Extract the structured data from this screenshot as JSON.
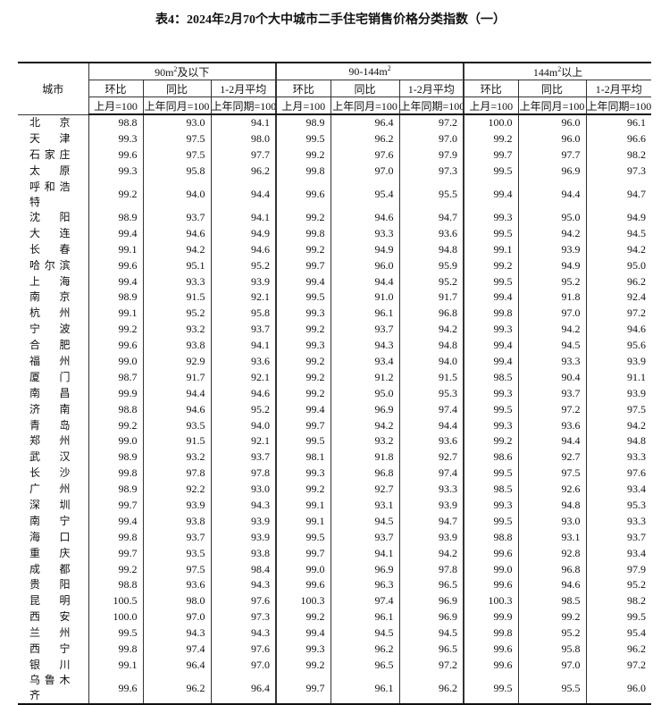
{
  "title": "表4：2024年2月70个大中城市二手住宅销售价格分类指数（一）",
  "header": {
    "city": "城市",
    "groups": [
      {
        "label": "90m",
        "sup": "2",
        "suffix": "及以下"
      },
      {
        "label": "90-144m",
        "sup": "2",
        "suffix": ""
      },
      {
        "label": "144m",
        "sup": "2",
        "suffix": "以上"
      }
    ],
    "sub": [
      "环比",
      "同比",
      "1-2月平均"
    ],
    "base": [
      "上月=100",
      "上年同月=100",
      "上年同期=100"
    ]
  },
  "rows": [
    [
      "北　京",
      "98.8",
      "93.0",
      "94.1",
      "98.9",
      "96.4",
      "97.2",
      "100.0",
      "96.0",
      "96.1"
    ],
    [
      "天　津",
      "99.3",
      "97.5",
      "98.0",
      "99.5",
      "96.2",
      "97.0",
      "99.2",
      "96.0",
      "96.6"
    ],
    [
      "石家庄",
      "99.6",
      "97.5",
      "97.7",
      "99.2",
      "97.6",
      "97.9",
      "99.7",
      "97.7",
      "98.2"
    ],
    [
      "太　原",
      "99.3",
      "95.8",
      "96.2",
      "99.8",
      "97.0",
      "97.3",
      "99.5",
      "96.9",
      "97.3"
    ],
    [
      "呼和浩特",
      "99.2",
      "94.0",
      "94.4",
      "99.6",
      "95.4",
      "95.5",
      "99.4",
      "94.4",
      "94.7"
    ],
    [
      "沈　阳",
      "98.9",
      "93.7",
      "94.1",
      "99.2",
      "94.6",
      "94.7",
      "99.3",
      "95.0",
      "94.9"
    ],
    [
      "大　连",
      "99.4",
      "94.6",
      "94.9",
      "99.8",
      "93.3",
      "93.6",
      "99.5",
      "94.2",
      "94.5"
    ],
    [
      "长　春",
      "99.1",
      "94.2",
      "94.6",
      "99.2",
      "94.9",
      "94.8",
      "99.1",
      "93.9",
      "94.2"
    ],
    [
      "哈尔滨",
      "99.6",
      "95.1",
      "95.2",
      "99.7",
      "96.0",
      "95.9",
      "99.2",
      "94.9",
      "95.0"
    ],
    [
      "上　海",
      "99.4",
      "93.3",
      "93.9",
      "99.4",
      "94.4",
      "95.2",
      "99.5",
      "95.2",
      "96.2"
    ],
    [
      "南　京",
      "98.9",
      "91.5",
      "92.1",
      "99.5",
      "91.0",
      "91.7",
      "99.4",
      "91.8",
      "92.4"
    ],
    [
      "杭　州",
      "99.1",
      "95.2",
      "95.8",
      "99.3",
      "96.1",
      "96.8",
      "99.8",
      "97.0",
      "97.2"
    ],
    [
      "宁　波",
      "99.2",
      "93.2",
      "93.7",
      "99.2",
      "93.7",
      "94.2",
      "99.3",
      "94.2",
      "94.6"
    ],
    [
      "合　肥",
      "99.6",
      "93.8",
      "94.1",
      "99.3",
      "94.3",
      "94.8",
      "99.4",
      "94.5",
      "95.6"
    ],
    [
      "福　州",
      "99.0",
      "92.9",
      "93.6",
      "99.2",
      "93.4",
      "94.0",
      "99.4",
      "93.3",
      "93.9"
    ],
    [
      "厦　门",
      "98.7",
      "91.7",
      "92.1",
      "99.2",
      "91.2",
      "91.5",
      "98.5",
      "90.4",
      "91.1"
    ],
    [
      "南　昌",
      "99.9",
      "94.4",
      "94.6",
      "99.2",
      "95.0",
      "95.3",
      "99.3",
      "93.7",
      "93.9"
    ],
    [
      "济　南",
      "98.8",
      "94.6",
      "95.2",
      "99.4",
      "96.9",
      "97.4",
      "99.5",
      "97.2",
      "97.5"
    ],
    [
      "青　岛",
      "99.2",
      "93.5",
      "94.0",
      "99.7",
      "94.2",
      "94.4",
      "99.3",
      "93.6",
      "94.2"
    ],
    [
      "郑　州",
      "99.0",
      "91.5",
      "92.1",
      "99.5",
      "93.2",
      "93.6",
      "99.2",
      "94.4",
      "94.8"
    ],
    [
      "武　汉",
      "98.9",
      "93.2",
      "93.7",
      "98.1",
      "91.8",
      "92.7",
      "98.6",
      "92.7",
      "93.3"
    ],
    [
      "长　沙",
      "99.8",
      "97.8",
      "97.8",
      "99.3",
      "96.8",
      "97.4",
      "99.5",
      "97.5",
      "97.6"
    ],
    [
      "广　州",
      "98.9",
      "92.2",
      "93.0",
      "99.2",
      "92.7",
      "93.3",
      "98.5",
      "92.6",
      "93.4"
    ],
    [
      "深　圳",
      "99.7",
      "93.9",
      "94.3",
      "99.1",
      "93.1",
      "93.9",
      "99.3",
      "94.8",
      "95.3"
    ],
    [
      "南　宁",
      "99.4",
      "93.8",
      "93.9",
      "99.1",
      "94.5",
      "94.7",
      "99.5",
      "93.0",
      "93.3"
    ],
    [
      "海　口",
      "99.8",
      "93.7",
      "93.9",
      "99.5",
      "93.7",
      "93.9",
      "98.8",
      "93.1",
      "93.7"
    ],
    [
      "重　庆",
      "99.7",
      "93.5",
      "93.8",
      "99.7",
      "94.1",
      "94.2",
      "99.6",
      "92.8",
      "93.4"
    ],
    [
      "成　都",
      "99.2",
      "97.5",
      "98.4",
      "99.0",
      "96.9",
      "97.8",
      "99.0",
      "96.8",
      "97.9"
    ],
    [
      "贵　阳",
      "98.8",
      "93.6",
      "94.3",
      "99.6",
      "96.3",
      "96.5",
      "99.6",
      "94.6",
      "95.2"
    ],
    [
      "昆　明",
      "100.5",
      "98.0",
      "97.6",
      "100.3",
      "97.4",
      "96.9",
      "100.3",
      "98.5",
      "98.2"
    ],
    [
      "西　安",
      "100.0",
      "97.0",
      "97.3",
      "99.2",
      "96.1",
      "96.9",
      "99.9",
      "99.2",
      "99.5"
    ],
    [
      "兰　州",
      "99.5",
      "94.3",
      "94.3",
      "99.4",
      "94.5",
      "94.5",
      "99.8",
      "95.2",
      "95.4"
    ],
    [
      "西　宁",
      "99.8",
      "97.4",
      "97.6",
      "99.3",
      "96.2",
      "96.5",
      "99.6",
      "95.8",
      "96.2"
    ],
    [
      "银　川",
      "99.1",
      "96.4",
      "97.0",
      "99.2",
      "96.5",
      "97.2",
      "99.6",
      "97.0",
      "97.2"
    ],
    [
      "乌鲁木齐",
      "99.6",
      "96.2",
      "96.4",
      "99.7",
      "96.1",
      "96.2",
      "99.5",
      "95.5",
      "96.0"
    ]
  ]
}
